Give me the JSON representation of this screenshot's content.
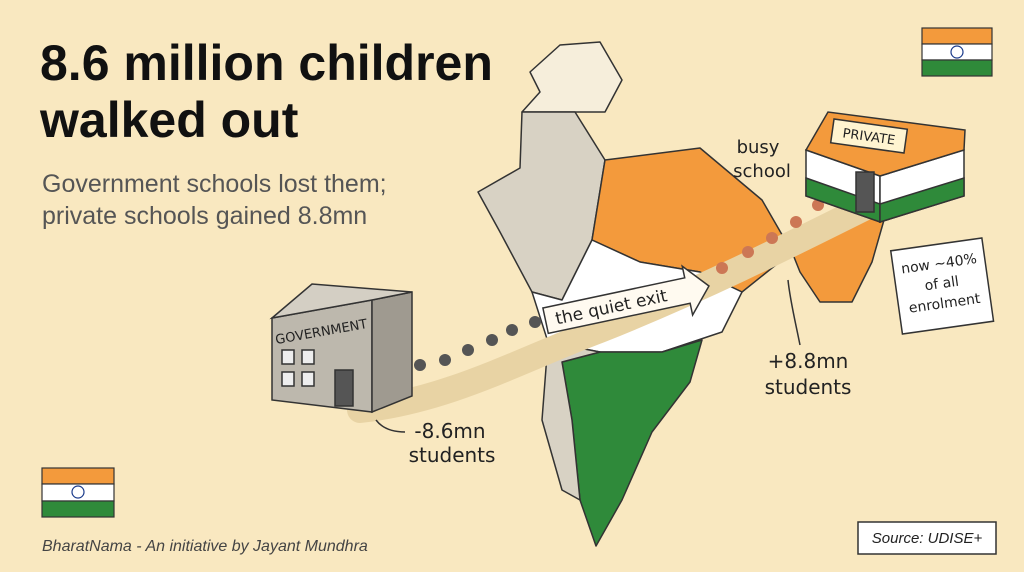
{
  "header": {
    "title_lines": [
      "8.6 million children",
      "walked out"
    ],
    "subtitle_lines": [
      "Government schools lost them;",
      "private schools gained 8.8mn"
    ]
  },
  "illustration": {
    "private_sign": "PRIVATE",
    "government_sign": "GOVERNMENT",
    "arrow_label": "the quiet exit",
    "busy_label_lines": [
      "busy",
      "school"
    ],
    "share_note_lines": [
      "now ~40%",
      "of all",
      "enrolment"
    ],
    "gain_label_lines": [
      "+8.8mn",
      "students"
    ],
    "loss_label_lines": [
      "-8.6mn",
      "students"
    ]
  },
  "footer": {
    "credit": "BharatNama - An initiative by Jayant Mundhra",
    "source": "Source: UDISE+"
  }
}
